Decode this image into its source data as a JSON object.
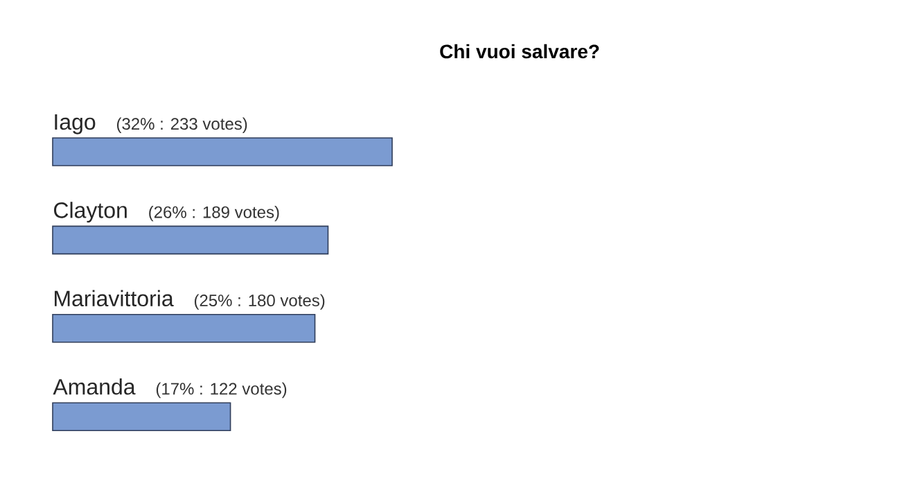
{
  "chart_data": {
    "type": "bar",
    "orientation": "horizontal",
    "title": "Chi vuoi salvare?",
    "categories": [
      "Iago",
      "Clayton",
      "Mariavittoria",
      "Amanda"
    ],
    "values": [
      233,
      189,
      180,
      122
    ],
    "value_labels": [
      "(32% : 233 votes)",
      "(26% : 189 votes)",
      "(25% : 180 votes)",
      "(17% : 122 votes)"
    ],
    "color": "#7b9bd1"
  }
}
